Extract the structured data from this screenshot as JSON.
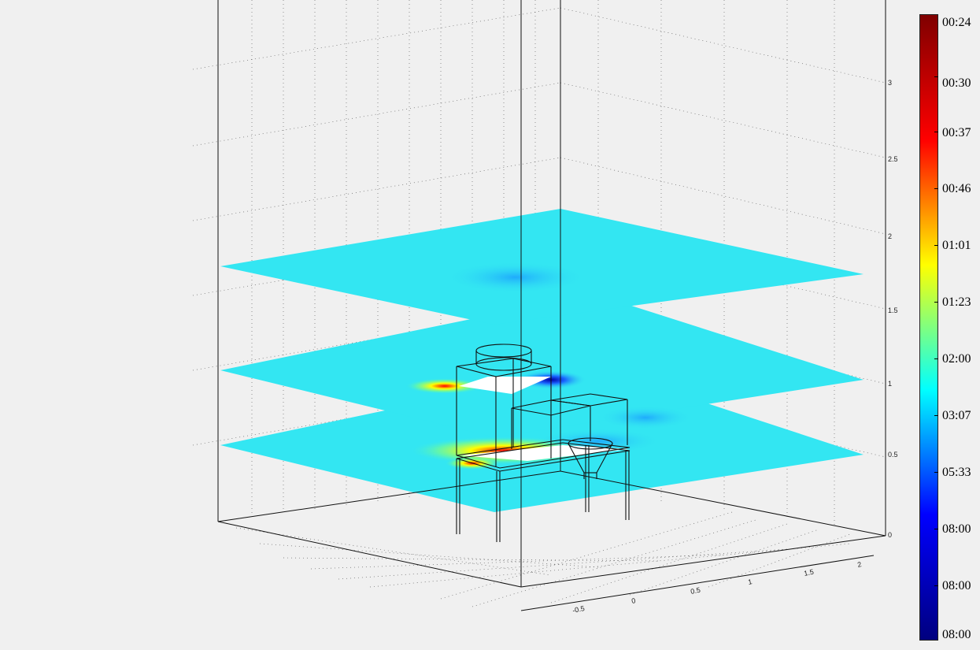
{
  "axes": {
    "z_ticks": [
      "0",
      "0.5",
      "1",
      "1.5",
      "2",
      "2.5",
      "3"
    ],
    "x_ticks": [
      "-0.5",
      "0",
      "0.5",
      "1",
      "1.5",
      "2"
    ]
  },
  "colorbar": {
    "labels": [
      "00:24",
      "00:30",
      "00:37",
      "00:46",
      "01:01",
      "01:23",
      "02:00",
      "03:07",
      "05:33",
      "08:00",
      "08:00",
      "08:00"
    ],
    "colors": [
      "#7f0000",
      "#ff0000",
      "#ffff00",
      "#00ffff",
      "#0000ff",
      "#00007f"
    ]
  },
  "slices": {
    "base_color": "#33e6f2"
  }
}
